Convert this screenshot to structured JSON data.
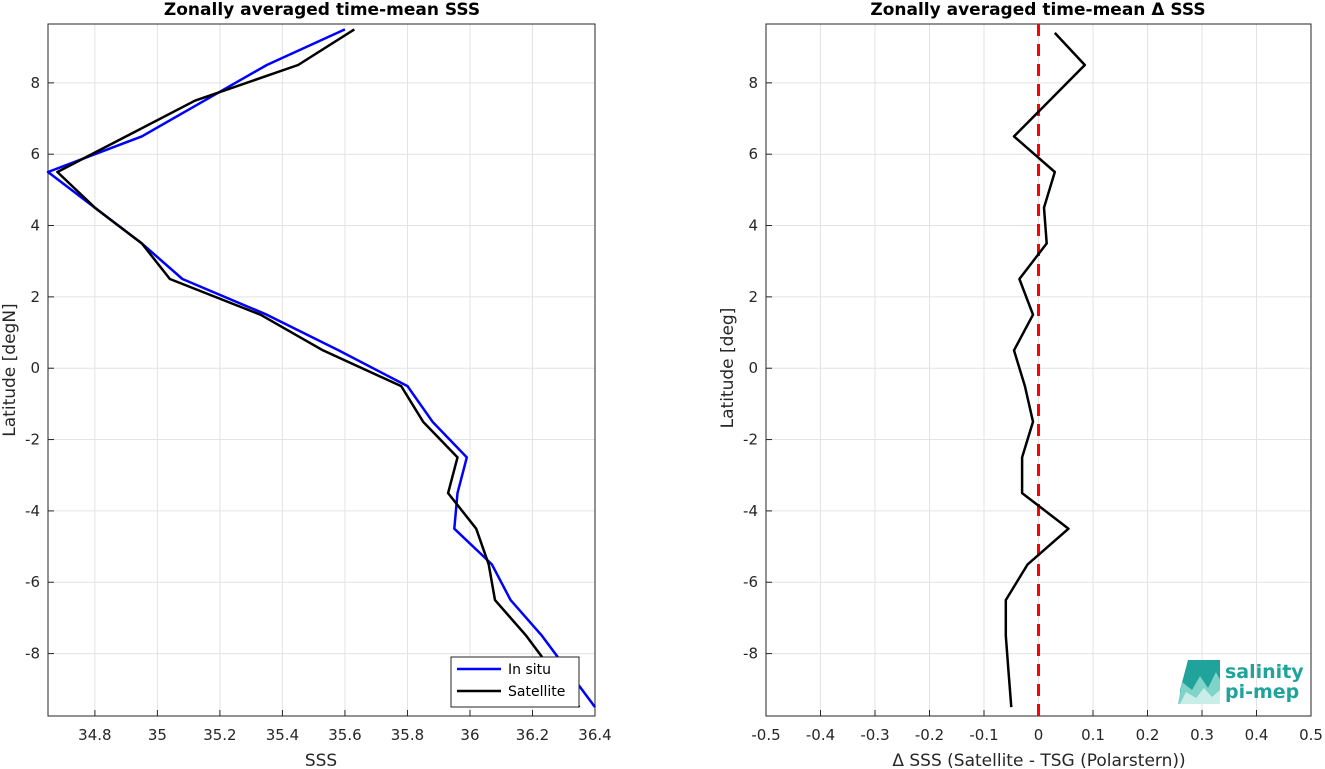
{
  "chart_data": [
    {
      "type": "line",
      "title": "Zonally averaged time-mean SSS",
      "xlabel": "SSS",
      "ylabel": "Latitude [degN]",
      "xlim": [
        34.65,
        36.4
      ],
      "ylim": [
        -9.75,
        9.65
      ],
      "xticks": [
        "34.8",
        "35",
        "35.2",
        "35.4",
        "35.6",
        "35.8",
        "36",
        "36.2",
        "36.4"
      ],
      "yticks": [
        "-8",
        "-6",
        "-4",
        "-2",
        "0",
        "2",
        "4",
        "6",
        "8"
      ],
      "grid": true,
      "legend": "bottom-right",
      "series": [
        {
          "name": "In situ",
          "color": "#0000ff",
          "x": [
            35.6,
            35.35,
            35.15,
            34.95,
            34.65,
            34.8,
            34.95,
            35.08,
            35.35,
            35.58,
            35.8,
            35.88,
            35.99,
            35.96,
            35.95,
            36.07,
            36.13,
            36.23,
            36.4
          ],
          "y": [
            9.5,
            8.5,
            7.5,
            6.5,
            5.5,
            4.5,
            3.5,
            2.5,
            1.5,
            0.5,
            -0.5,
            -1.5,
            -2.5,
            -3.5,
            -4.5,
            -5.5,
            -6.5,
            -7.5,
            -9.5
          ]
        },
        {
          "name": "Satellite",
          "color": "#000000",
          "x": [
            35.63,
            35.45,
            35.12,
            34.9,
            34.68,
            34.8,
            34.95,
            35.04,
            35.33,
            35.53,
            35.78,
            35.85,
            35.96,
            35.93,
            36.02,
            36.06,
            36.08,
            36.18,
            36.35
          ],
          "y": [
            9.5,
            8.5,
            7.5,
            6.5,
            5.5,
            4.5,
            3.5,
            2.5,
            1.5,
            0.5,
            -0.5,
            -1.5,
            -2.5,
            -3.5,
            -4.5,
            -5.5,
            -6.5,
            -7.5,
            -9.5
          ]
        }
      ]
    },
    {
      "type": "line",
      "title": "Zonally averaged time-mean Δ SSS",
      "xlabel": "Δ SSS (Satellite - TSG (Polarstern))",
      "ylabel": "Latitude [deg]",
      "xlim": [
        -0.5,
        0.5
      ],
      "ylim": [
        -9.75,
        9.65
      ],
      "xticks": [
        "-0.5",
        "-0.4",
        "-0.3",
        "-0.2",
        "-0.1",
        "0",
        "0.1",
        "0.2",
        "0.3",
        "0.4",
        "0.5"
      ],
      "yticks": [
        "-8",
        "-6",
        "-4",
        "-2",
        "0",
        "2",
        "4",
        "6",
        "8"
      ],
      "grid": true,
      "reference_line": {
        "x": 0,
        "color": "#ff0000",
        "style": "dashed"
      },
      "series": [
        {
          "color": "#000000",
          "x": [
            0.03,
            0.085,
            0.02,
            -0.045,
            0.03,
            0.01,
            0.015,
            -0.035,
            -0.01,
            -0.045,
            -0.025,
            -0.01,
            -0.03,
            -0.03,
            0.055,
            -0.02,
            -0.06,
            -0.06,
            -0.055,
            -0.05
          ],
          "y": [
            9.4,
            8.5,
            7.5,
            6.5,
            5.5,
            4.5,
            3.5,
            2.5,
            1.5,
            0.5,
            -0.5,
            -1.5,
            -2.5,
            -3.5,
            -4.5,
            -5.5,
            -6.5,
            -7.5,
            -8.5,
            -9.5
          ]
        }
      ]
    }
  ],
  "logo": {
    "line1": "salinity",
    "line2": "pi-mep",
    "color": "#1fa39a"
  }
}
